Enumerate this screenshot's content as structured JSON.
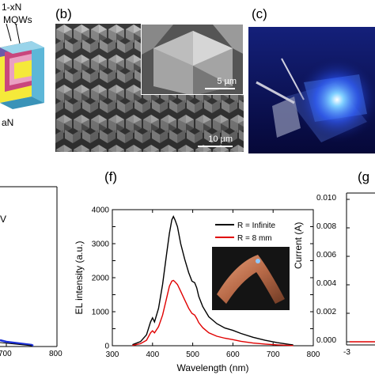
{
  "panel_a": {
    "label_top": "1-xN",
    "label_mqw": "MQWs",
    "label_bottom": "aN"
  },
  "panel_b": {
    "letter": "(b)",
    "inset_scale": "5 µm",
    "main_scale": "10 µm"
  },
  "panel_c": {
    "letter": "(c)"
  },
  "panel_e": {
    "tick_labels": [
      "700",
      "800"
    ],
    "fragment_text": "V"
  },
  "panel_f": {
    "letter": "(f)"
  },
  "panel_g": {
    "letter": "(g",
    "ylabel": "Current (A)",
    "tick_labels": [
      "0.010",
      "0.008",
      "0.006",
      "0.004",
      "0.002",
      "0.000"
    ],
    "xtick_fragment": "-3"
  },
  "colors": {
    "black_series": "#000000",
    "red_series": "#e00000",
    "blue_series": "#1b2fd6",
    "led_glow": "#2a55ff"
  },
  "chart_data": {
    "type": "line",
    "title": "",
    "xlabel": "Wavelength (nm)",
    "ylabel": "EL intensity (a.u.)",
    "xlim": [
      300,
      800
    ],
    "ylim": [
      0,
      4000
    ],
    "xticks": [
      300,
      400,
      500,
      600,
      700,
      800
    ],
    "yticks": [
      0,
      500,
      1000,
      1500,
      2000,
      2500,
      3000,
      3500,
      4000
    ],
    "legend_position": "top-right",
    "series": [
      {
        "name": "R = Infinite",
        "color": "#000000",
        "x": [
          350,
          370,
          385,
          395,
          400,
          405,
          415,
          425,
          435,
          442,
          448,
          452,
          456,
          462,
          470,
          480,
          490,
          498,
          505,
          510,
          515,
          525,
          540,
          560,
          580,
          600,
          620,
          650,
          680,
          710,
          740,
          750
        ],
        "y": [
          30,
          120,
          320,
          700,
          820,
          700,
          1100,
          1800,
          2700,
          3300,
          3700,
          3800,
          3700,
          3500,
          3000,
          2550,
          2150,
          1900,
          1850,
          1700,
          1450,
          1150,
          850,
          650,
          520,
          450,
          360,
          250,
          160,
          90,
          40,
          25
        ]
      },
      {
        "name": "R = 8 mm",
        "color": "#e00000",
        "x": [
          350,
          370,
          385,
          395,
          400,
          405,
          415,
          425,
          435,
          442,
          448,
          452,
          456,
          462,
          470,
          480,
          490,
          498,
          505,
          510,
          515,
          525,
          540,
          560,
          580,
          600,
          620,
          650,
          680,
          710,
          740,
          750
        ],
        "y": [
          10,
          60,
          160,
          380,
          440,
          380,
          560,
          900,
          1400,
          1750,
          1900,
          1920,
          1880,
          1800,
          1600,
          1350,
          1100,
          950,
          900,
          800,
          680,
          530,
          380,
          280,
          220,
          180,
          130,
          80,
          50,
          25,
          10,
          5
        ]
      }
    ]
  }
}
